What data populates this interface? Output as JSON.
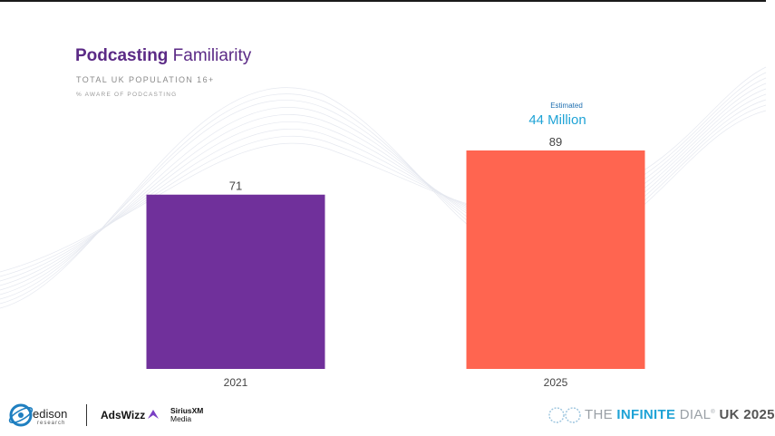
{
  "title": {
    "bold": "Podcasting",
    "rest": " Familiarity"
  },
  "subtitle": "TOTAL UK POPULATION 16+",
  "subsubtitle": "% AWARE OF PODCASTING",
  "annotation": {
    "small": "Estimated",
    "big": "44 Million"
  },
  "chart_data": {
    "type": "bar",
    "categories": [
      "2021",
      "2025"
    ],
    "values": [
      71,
      89
    ],
    "colors": [
      "#70309b",
      "#ff6550"
    ],
    "title": "Podcasting Familiarity",
    "subtitle": "TOTAL UK POPULATION 16+",
    "ylabel": "% AWARE OF PODCASTING",
    "xlabel": "",
    "ylim": [
      0,
      89
    ],
    "grid": false,
    "legend": "none"
  },
  "footer": {
    "edison": {
      "name": "edison",
      "sub": "research"
    },
    "adswizz": "AdsWizz",
    "sirius": {
      "line1": "SiriusXM",
      "line2": "Media"
    },
    "dial": {
      "part1": "THE ",
      "part2": "INFINITE",
      "part3": " DIAL",
      "mark": "®",
      "part4": " UK 2025"
    }
  }
}
